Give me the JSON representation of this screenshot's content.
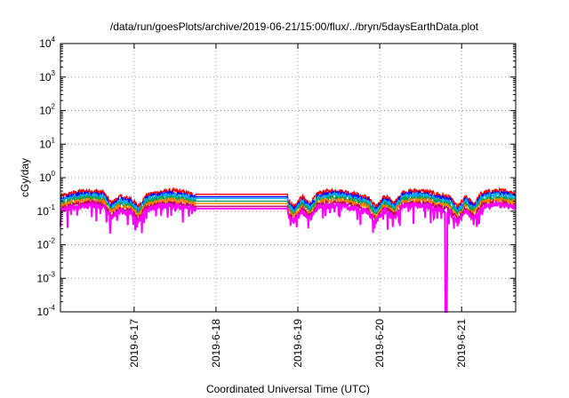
{
  "chart_data": {
    "type": "line",
    "title": "/data/run/goesPlots/archive/2019-06-21/15:00/flux/../bryn/5daysEarthData.plot",
    "xlabel": "Coordinated Universal Time (UTC)",
    "ylabel": "cGy/day",
    "y_scale": "log",
    "ylim": [
      0.0001,
      10000
    ],
    "xlim_days": [
      16.1,
      21.66
    ],
    "x_ticks": [
      {
        "label": "2019-6-17",
        "day": 17
      },
      {
        "label": "2019-6-18",
        "day": 18
      },
      {
        "label": "2019-6-19",
        "day": 19
      },
      {
        "label": "2019-6-20",
        "day": 20
      },
      {
        "label": "2019-6-21",
        "day": 21
      }
    ],
    "y_ticks": [
      {
        "base": "10",
        "exp": "-4",
        "value": 0.0001
      },
      {
        "base": "10",
        "exp": "-3",
        "value": 0.001
      },
      {
        "base": "10",
        "exp": "-2",
        "value": 0.01
      },
      {
        "base": "10",
        "exp": "-1",
        "value": 0.1
      },
      {
        "base": "10",
        "exp": "0",
        "value": 1
      },
      {
        "base": "10",
        "exp": "1",
        "value": 10
      },
      {
        "base": "10",
        "exp": "2",
        "value": 100
      },
      {
        "base": "10",
        "exp": "3",
        "value": 1000
      },
      {
        "base": "10",
        "exp": "4",
        "value": 10000
      }
    ],
    "grid": true,
    "data_gap_days": [
      17.75,
      18.88
    ],
    "series": [
      {
        "color": "#ff0000",
        "level": 0.32
      },
      {
        "color": "#0000ff",
        "level": 0.27
      },
      {
        "color": "#00b0ff",
        "level": 0.24
      },
      {
        "color": "#00a050",
        "level": 0.2
      },
      {
        "color": "#ff8000",
        "level": 0.17
      },
      {
        "color": "#c00060",
        "level": 0.14
      },
      {
        "color": "#ff00ff",
        "level": 0.12
      }
    ]
  }
}
